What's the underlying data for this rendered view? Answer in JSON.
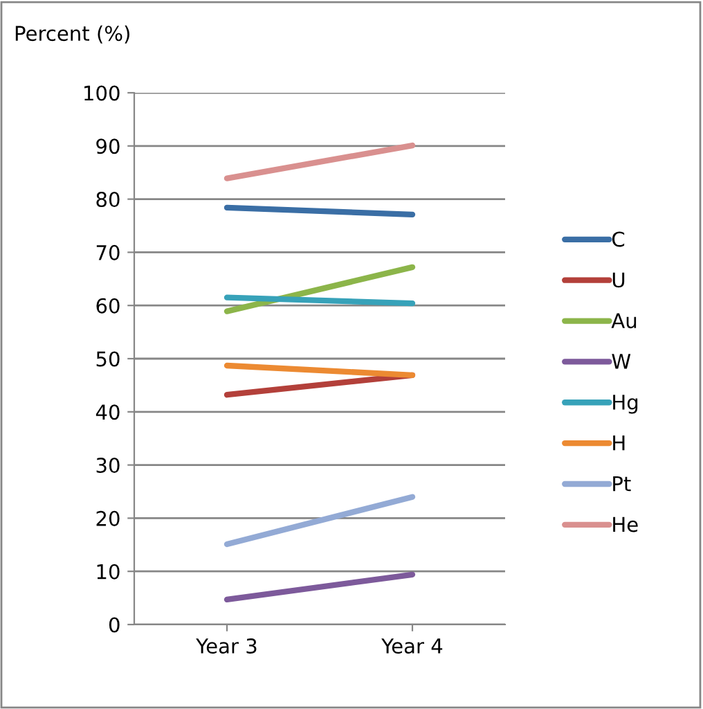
{
  "chart_data": {
    "type": "line",
    "ylabel": "Percent (%)",
    "categories": [
      "Year 3",
      "Year 4"
    ],
    "series": [
      {
        "name": "C",
        "color": "#3a6ea5",
        "values": [
          78.4,
          77.1
        ]
      },
      {
        "name": "U",
        "color": "#b3403a",
        "values": [
          43.2,
          46.9
        ]
      },
      {
        "name": "Au",
        "color": "#8cb54a",
        "values": [
          58.9,
          67.2
        ]
      },
      {
        "name": "W",
        "color": "#7d5a9b",
        "values": [
          4.7,
          9.4
        ]
      },
      {
        "name": "Hg",
        "color": "#37a2b9",
        "values": [
          61.5,
          60.4
        ]
      },
      {
        "name": "H",
        "color": "#ec8a32",
        "values": [
          48.7,
          46.9
        ]
      },
      {
        "name": "Pt",
        "color": "#93aad5",
        "values": [
          15.1,
          24.0
        ]
      },
      {
        "name": "He",
        "color": "#d9908f",
        "values": [
          83.9,
          90.1
        ]
      }
    ],
    "ylim": [
      0,
      100
    ],
    "yticks": [
      0,
      10,
      20,
      30,
      40,
      50,
      60,
      70,
      80,
      90,
      100
    ],
    "grid": "y",
    "legend": "right",
    "marker": "none",
    "line_style": "solid"
  }
}
